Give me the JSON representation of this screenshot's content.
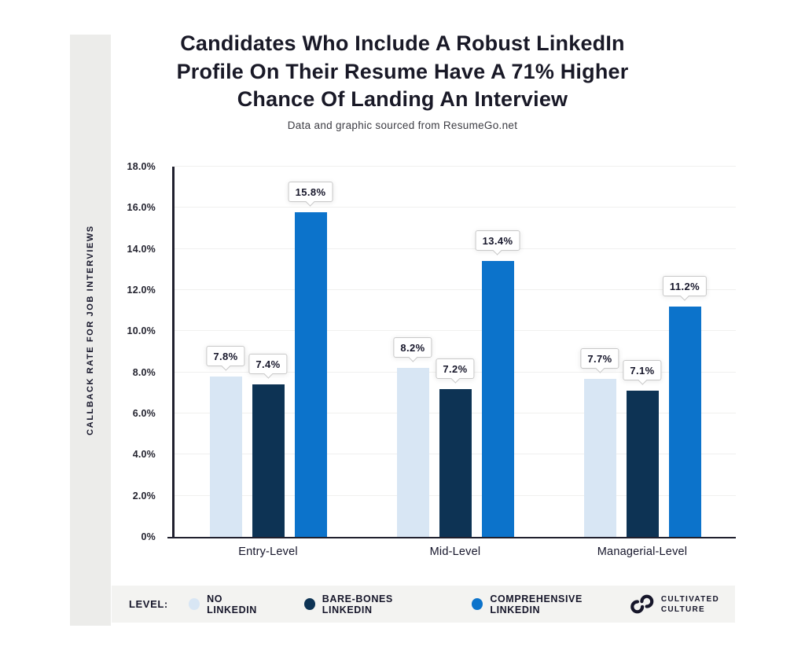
{
  "header": {
    "title_lines": [
      "Candidates Who Include A Robust LinkedIn",
      "Profile On Their Resume Have A 71% Higher",
      "Chance Of Landing An Interview"
    ],
    "subtitle": "Data and graphic sourced from ResumeGo.net"
  },
  "chart_data": {
    "type": "bar",
    "title": "Candidates Who Include A Robust LinkedIn Profile On Their Resume Have A 71% Higher Chance Of Landing An Interview",
    "subtitle": "Data and graphic sourced from ResumeGo.net",
    "categories": [
      "Entry-Level",
      "Mid-Level",
      "Managerial-Level"
    ],
    "series": [
      {
        "name": "NO LINKEDIN",
        "color": "#D8E6F4",
        "values": [
          7.8,
          8.2,
          7.7
        ],
        "labels": [
          "7.8%",
          "8.2%",
          "7.7%"
        ]
      },
      {
        "name": "BARE-BONES LINKEDIN",
        "color": "#0D3354",
        "values": [
          7.4,
          7.2,
          7.1
        ],
        "labels": [
          "7.4%",
          "7.2%",
          "7.1%"
        ]
      },
      {
        "name": "COMPREHENSIVE LINKEDIN",
        "color": "#0C73CB",
        "values": [
          15.8,
          13.4,
          11.2
        ],
        "labels": [
          "15.8%",
          "13.4%",
          "11.2%"
        ]
      }
    ],
    "xlabel": "",
    "ylabel": "CALLBACK RATE FOR JOB INTERVIEWS",
    "ylim": [
      0,
      18
    ],
    "yticks": [
      {
        "value": 0,
        "label": "0%"
      },
      {
        "value": 2,
        "label": "2.0%"
      },
      {
        "value": 4,
        "label": "4.0%"
      },
      {
        "value": 6,
        "label": "6.0%"
      },
      {
        "value": 8,
        "label": "8.0%"
      },
      {
        "value": 10,
        "label": "10.0%"
      },
      {
        "value": 12,
        "label": "12.0%"
      },
      {
        "value": 14,
        "label": "14.0%"
      },
      {
        "value": 16,
        "label": "16.0%"
      },
      {
        "value": 18,
        "label": "18.0%"
      }
    ],
    "grid": true,
    "legend_position": "bottom"
  },
  "legend": {
    "prefix": "LEVEL:",
    "items": [
      {
        "label": "NO LINKEDIN",
        "color": "#D8E6F4"
      },
      {
        "label": "BARE-BONES LINKEDIN",
        "color": "#0D3354"
      },
      {
        "label": "COMPREHENSIVE LINKEDIN",
        "color": "#0C73CB"
      }
    ]
  },
  "logo": {
    "line1": "CULTIVATED",
    "line2": "CULTURE"
  },
  "colors": {
    "text_dark": "#16162a",
    "axis": "#20202e",
    "gridline": "#F0F0EF",
    "strip_gray": "#ECECEA",
    "legend_strip_gray": "#F3F3F1"
  }
}
